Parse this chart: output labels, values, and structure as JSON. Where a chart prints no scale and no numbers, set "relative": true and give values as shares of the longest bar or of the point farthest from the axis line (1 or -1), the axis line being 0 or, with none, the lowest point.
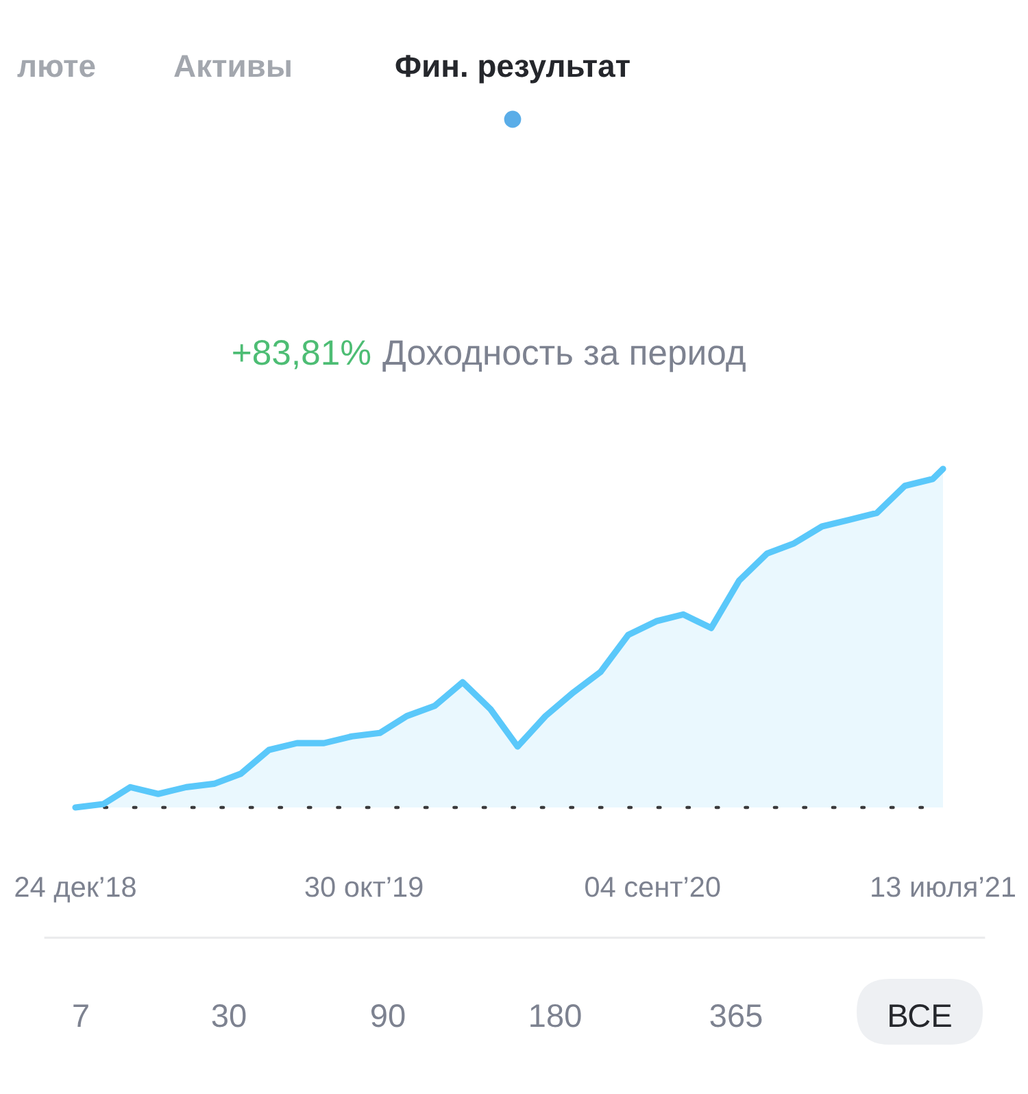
{
  "chart_data": {
    "type": "area",
    "title": "Фин. результат",
    "subtitle": "Доходность за период",
    "annotations": [
      "люте",
      "Активы",
      "+83,81%",
      "7",
      "30",
      "90",
      "180",
      "365",
      "ВСЕ"
    ],
    "relative": true,
    "x": [
      "2018-12-24",
      "2019-01-23",
      "2019-02-21",
      "2019-03-23",
      "2019-04-22",
      "2019-05-22",
      "2019-06-20",
      "2019-07-20",
      "2019-08-19",
      "2019-09-17",
      "2019-10-17",
      "2019-11-16",
      "2019-12-15",
      "2020-01-14",
      "2020-02-13",
      "2020-03-14",
      "2020-04-12",
      "2020-05-12",
      "2020-06-11",
      "2020-07-10",
      "2020-08-09",
      "2020-09-08",
      "2020-10-07",
      "2020-11-06",
      "2020-12-06",
      "2021-01-05",
      "2021-02-03",
      "2021-03-05",
      "2021-04-04",
      "2021-05-03",
      "2021-06-02",
      "2021-07-02",
      "2021-07-13"
    ],
    "xlim": [
      "2018-12-24",
      "2021-07-13"
    ],
    "xticks": [
      {
        "value": "2018-12-24",
        "label": "24 дек’18"
      },
      {
        "value": "2019-10-30",
        "label": "30 окт’19"
      },
      {
        "value": "2020-09-04",
        "label": "04 сент’20"
      },
      {
        "value": "2021-07-13",
        "label": "13 июля’21"
      }
    ],
    "tick_labels": "x",
    "series": [
      {
        "color": "#5ac8fa",
        "values": [
          0.0,
          0.01,
          0.06,
          0.04,
          0.06,
          0.07,
          0.1,
          0.17,
          0.19,
          0.19,
          0.21,
          0.22,
          0.27,
          0.3,
          0.37,
          0.29,
          0.18,
          0.27,
          0.34,
          0.4,
          0.51,
          0.55,
          0.57,
          0.53,
          0.67,
          0.75,
          0.78,
          0.83,
          0.85,
          0.87,
          0.95,
          0.97,
          1.0
        ]
      }
    ]
  }
}
